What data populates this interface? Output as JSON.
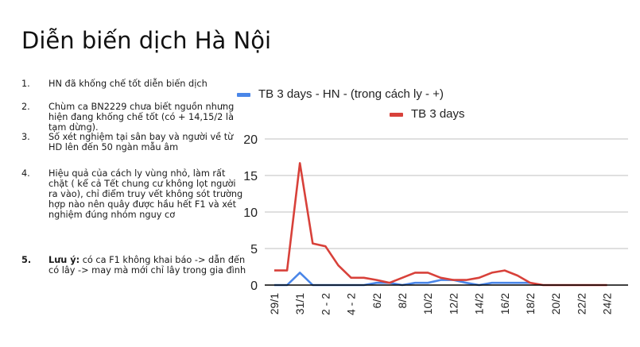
{
  "slide": {
    "title": "Diễn biến dịch Hà Nội",
    "bullets": [
      {
        "num": "1.",
        "text": "HN đã khống chế tốt diễn biến dịch"
      },
      {
        "num": "2.",
        "text": "Chùm ca BN2229 chưa biết nguồn nhưng hiện đang khống chế tốt (có + 14,15/2 là tạm dừng)."
      },
      {
        "num": "3.",
        "text": "Số xét nghiệm tại sân bay và người về từ HD lên đến 50 ngàn mẫu âm"
      },
      {
        "num": "4.",
        "text": "Hiệu quả của cách ly vùng nhỏ, làm rất chặt ( kể cả Tết chung cư không lọt người ra vào), chỉ điểm truy vết không sót trường hợp nào nên quây được hầu hết F1 và xét nghiệm đúng nhóm nguy cơ"
      },
      {
        "num": "5.",
        "bold_prefix": "Lưu ý:",
        "text": " có ca F1 không khai báo -> dẫn đến có lây -> may mà mới chỉ lây trong gia đình"
      }
    ]
  },
  "colors": {
    "blue_series": "#4a86e8",
    "red_series": "#d8413a",
    "gridline": "#cccccc",
    "axis": "#000000"
  },
  "chart_data": {
    "type": "line",
    "title": "",
    "xlabel": "",
    "ylabel": "",
    "ylim": [
      0,
      20
    ],
    "yticks": [
      0,
      5,
      10,
      15,
      20
    ],
    "grid": true,
    "legend_position": "top",
    "x": [
      "29/1",
      "30/1",
      "31/1",
      "1/2",
      "2/2",
      "3/2",
      "4/2",
      "5/2",
      "6/2",
      "7/2",
      "8/2",
      "9/2",
      "10/2",
      "11/2",
      "12/2",
      "13/2",
      "14/2",
      "15/2",
      "16/2",
      "17/2",
      "18/2",
      "19/2",
      "20/2",
      "21/2",
      "22/2",
      "23/2",
      "24/2"
    ],
    "xtick_labels": [
      "29/1",
      "31/1",
      "2 - 2",
      "4 - 2",
      "6/2",
      "8/2",
      "10/2",
      "12/2",
      "14/2",
      "16/2",
      "18/2",
      "20/2",
      "22/2",
      "24/2"
    ],
    "series": [
      {
        "name": "TB 3 days - HN - (trong cách ly  - +)",
        "color": "#4a86e8",
        "values": [
          0,
          0,
          1.7,
          0,
          0,
          0,
          0,
          0,
          0.3,
          0.3,
          0,
          0.3,
          0.3,
          0.7,
          0.7,
          0.3,
          0,
          0.3,
          0.3,
          0.3,
          0.3,
          null,
          null,
          null,
          null,
          null,
          null
        ]
      },
      {
        "name": "TB 3 days",
        "color": "#d8413a",
        "values": [
          2,
          2,
          16.7,
          5.7,
          5.3,
          2.7,
          1,
          1,
          0.7,
          0.3,
          1,
          1.7,
          1.7,
          1,
          0.7,
          0.7,
          1,
          1.7,
          2,
          1.3,
          0.3,
          0,
          0,
          0,
          0,
          0,
          0
        ]
      }
    ]
  }
}
